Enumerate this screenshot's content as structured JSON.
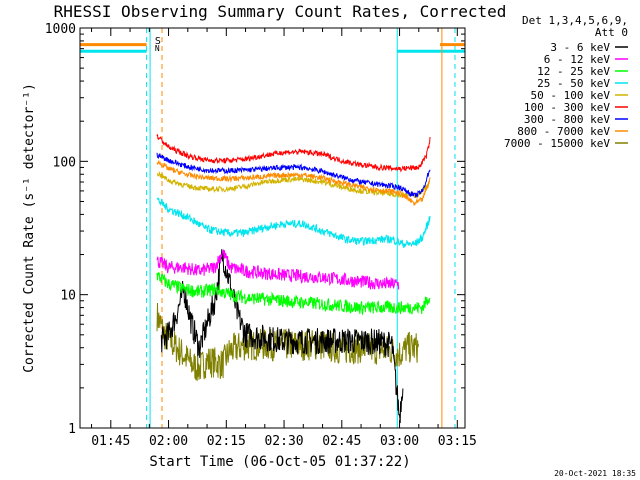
{
  "chart_data": {
    "type": "line",
    "title": "RHESSI Observing Summary Count Rates, Corrected",
    "xlabel": "Start Time (06-Oct-05 01:37:22)",
    "ylabel": "Corrected Count Rate (s⁻¹ detector⁻¹)",
    "yscale": "log",
    "ylim": [
      1,
      1000
    ],
    "xlim_minutes": [
      97,
      197
    ],
    "x_ticks": [
      {
        "minute": 105,
        "label": "01:45"
      },
      {
        "minute": 120,
        "label": "02:00"
      },
      {
        "minute": 135,
        "label": "02:15"
      },
      {
        "minute": 150,
        "label": "02:30"
      },
      {
        "minute": 165,
        "label": "02:45"
      },
      {
        "minute": 180,
        "label": "03:00"
      },
      {
        "minute": 195,
        "label": "03:15"
      }
    ],
    "y_ticks": [
      {
        "value": 1,
        "label": "1"
      },
      {
        "value": 10,
        "label": "10"
      },
      {
        "value": 100,
        "label": "100"
      },
      {
        "value": 1000,
        "label": "1000"
      }
    ],
    "legend_header": [
      "Det 1,3,4,5,6,9,",
      "Att 0"
    ],
    "legend_position": "top-right outside",
    "footer": "20-Oct-2021 18:35",
    "flags": [
      {
        "label": "S",
        "minute": 117.5,
        "color": "#ff8c00"
      },
      {
        "label": "N",
        "minute": 117.5,
        "color": "#00e5ee"
      }
    ],
    "night_lines_minutes": [
      115.2,
      179.4
    ],
    "day_lines_dashed_minutes": [
      114.3,
      118.3,
      194.4
    ],
    "orange_solid_minute": 191.0,
    "series": [
      {
        "name": "3 - 6 keV",
        "color": "#000000",
        "points": [
          [
            118,
            4.5
          ],
          [
            120,
            5
          ],
          [
            122,
            7
          ],
          [
            124,
            11
          ],
          [
            126,
            6
          ],
          [
            128,
            4
          ],
          [
            130,
            6
          ],
          [
            132,
            9
          ],
          [
            134,
            20
          ],
          [
            136,
            12
          ],
          [
            138,
            7
          ],
          [
            140,
            5
          ],
          [
            144,
            4.8
          ],
          [
            150,
            4.5
          ],
          [
            160,
            4.5
          ],
          [
            170,
            4.5
          ],
          [
            175,
            4.4
          ],
          [
            178,
            4.2
          ],
          [
            180,
            1.2
          ],
          [
            181,
            2.5
          ]
        ]
      },
      {
        "name": "6 - 12 keV",
        "color": "#ff00ff",
        "points": [
          [
            117,
            18
          ],
          [
            120,
            16
          ],
          [
            124,
            16
          ],
          [
            128,
            15
          ],
          [
            132,
            16
          ],
          [
            134,
            21
          ],
          [
            136,
            16
          ],
          [
            140,
            15
          ],
          [
            150,
            14
          ],
          [
            160,
            13.5
          ],
          [
            170,
            12.5
          ],
          [
            176,
            12
          ],
          [
            180,
            12
          ]
        ]
      },
      {
        "name": "12 - 25 keV",
        "color": "#00ff00",
        "points": [
          [
            117,
            14
          ],
          [
            120,
            12
          ],
          [
            124,
            11
          ],
          [
            128,
            10.5
          ],
          [
            132,
            11
          ],
          [
            136,
            10
          ],
          [
            140,
            9.5
          ],
          [
            150,
            9
          ],
          [
            160,
            8.5
          ],
          [
            170,
            8
          ],
          [
            180,
            8
          ],
          [
            186,
            8
          ],
          [
            188,
            10
          ]
        ]
      },
      {
        "name": "25 - 50 keV",
        "color": "#00e5ee",
        "points": [
          [
            117,
            52
          ],
          [
            120,
            44
          ],
          [
            125,
            38
          ],
          [
            130,
            31
          ],
          [
            135,
            29
          ],
          [
            140,
            29
          ],
          [
            145,
            32
          ],
          [
            150,
            34
          ],
          [
            155,
            34
          ],
          [
            160,
            30
          ],
          [
            163,
            28
          ],
          [
            166,
            26
          ],
          [
            170,
            25
          ],
          [
            175,
            26
          ],
          [
            178,
            26
          ],
          [
            181,
            24
          ],
          [
            184,
            24
          ],
          [
            186,
            27
          ],
          [
            188,
            38
          ]
        ]
      },
      {
        "name": "50 - 100 keV",
        "color": "#d2b400",
        "points": [
          [
            117,
            82
          ],
          [
            120,
            72
          ],
          [
            125,
            65
          ],
          [
            130,
            62
          ],
          [
            135,
            62
          ],
          [
            140,
            65
          ],
          [
            145,
            70
          ],
          [
            150,
            73
          ],
          [
            155,
            73
          ],
          [
            160,
            70
          ],
          [
            165,
            64
          ],
          [
            170,
            60
          ],
          [
            175,
            58
          ],
          [
            180,
            56
          ],
          [
            185,
            56
          ],
          [
            188,
            70
          ]
        ]
      },
      {
        "name": "100 - 300 keV",
        "color": "#ff0000",
        "points": [
          [
            117,
            155
          ],
          [
            120,
            128
          ],
          [
            125,
            110
          ],
          [
            130,
            102
          ],
          [
            135,
            101
          ],
          [
            140,
            104
          ],
          [
            145,
            111
          ],
          [
            150,
            117
          ],
          [
            155,
            118
          ],
          [
            160,
            113
          ],
          [
            165,
            101
          ],
          [
            170,
            94
          ],
          [
            175,
            90
          ],
          [
            180,
            88
          ],
          [
            185,
            90
          ],
          [
            187,
            110
          ],
          [
            188,
            150
          ]
        ]
      },
      {
        "name": "300 - 800 keV",
        "color": "#0000ff",
        "points": [
          [
            117,
            112
          ],
          [
            120,
            102
          ],
          [
            125,
            91
          ],
          [
            130,
            86
          ],
          [
            135,
            85
          ],
          [
            140,
            86
          ],
          [
            145,
            88
          ],
          [
            150,
            90
          ],
          [
            155,
            90
          ],
          [
            160,
            84
          ],
          [
            165,
            76
          ],
          [
            170,
            70
          ],
          [
            175,
            67
          ],
          [
            180,
            64
          ],
          [
            184,
            55
          ],
          [
            186,
            60
          ],
          [
            188,
            90
          ]
        ]
      },
      {
        "name": "800 - 7000 keV",
        "color": "#ff8c00",
        "points": [
          [
            117,
            100
          ],
          [
            120,
            88
          ],
          [
            125,
            79
          ],
          [
            130,
            75
          ],
          [
            135,
            74
          ],
          [
            140,
            75
          ],
          [
            145,
            77
          ],
          [
            150,
            79
          ],
          [
            155,
            79
          ],
          [
            160,
            75
          ],
          [
            165,
            69
          ],
          [
            170,
            64
          ],
          [
            175,
            61
          ],
          [
            180,
            58
          ],
          [
            184,
            48
          ],
          [
            186,
            52
          ],
          [
            188,
            75
          ]
        ]
      },
      {
        "name": "7000 - 15000 keV",
        "color": "#808000",
        "points": [
          [
            117,
            7
          ],
          [
            119,
            5
          ],
          [
            122,
            4
          ],
          [
            124,
            3.5
          ],
          [
            126,
            3
          ],
          [
            128,
            2.8
          ],
          [
            130,
            3.2
          ],
          [
            134,
            3
          ],
          [
            136,
            3.8
          ],
          [
            140,
            4.2
          ],
          [
            150,
            4.2
          ],
          [
            160,
            4.2
          ],
          [
            165,
            3.9
          ],
          [
            170,
            4
          ],
          [
            178,
            3.8
          ],
          [
            180,
            3.6
          ],
          [
            182,
            4
          ],
          [
            185,
            4
          ]
        ]
      }
    ],
    "flat_segments": [
      {
        "color": "#ff8c00",
        "value": 750,
        "minutes": [
          97,
          114.3
        ]
      },
      {
        "color": "#00e5ee",
        "value": 670,
        "minutes": [
          97,
          114.3
        ]
      },
      {
        "color": "#ff8c00",
        "value": 750,
        "minutes": [
          190.5,
          197
        ]
      },
      {
        "color": "#00e5ee",
        "value": 670,
        "minutes": [
          179.4,
          197
        ]
      }
    ]
  }
}
